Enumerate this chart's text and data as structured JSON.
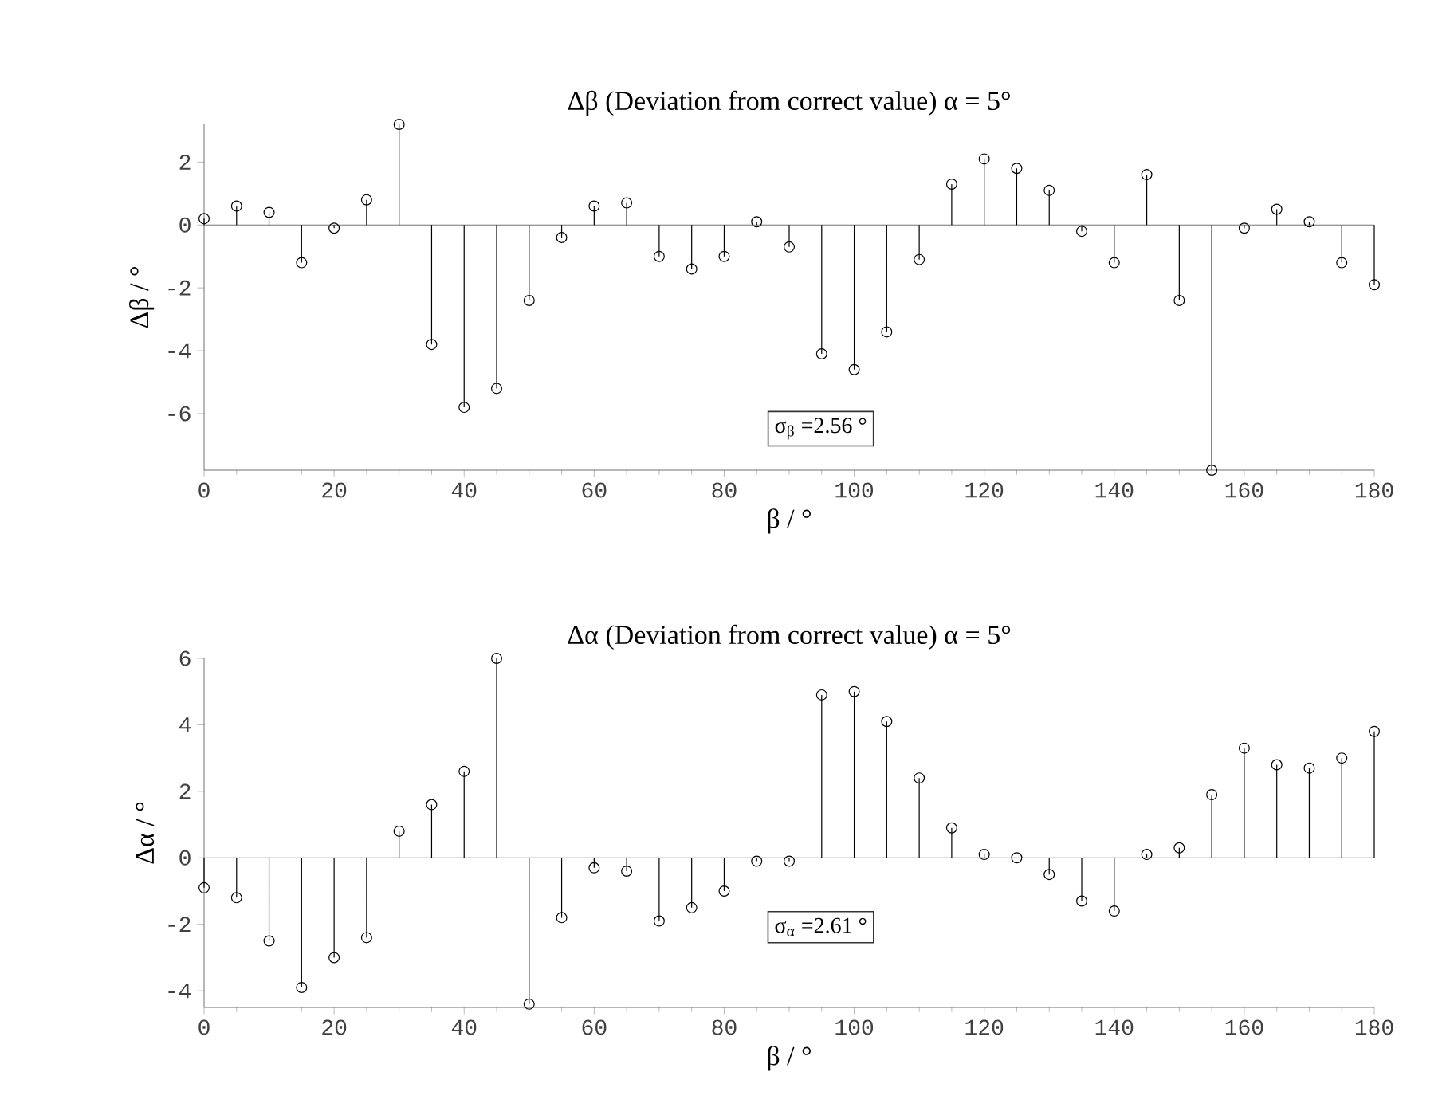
{
  "chart_data": [
    {
      "type": "lollipop",
      "title": "Δβ (Deviation from correct value) α = 5°",
      "xlabel": "β / °",
      "ylabel": "Δβ / °",
      "color": "#000000",
      "marker": "circle",
      "x": [
        0,
        5,
        10,
        15,
        20,
        25,
        30,
        35,
        40,
        45,
        50,
        55,
        60,
        65,
        70,
        75,
        80,
        85,
        90,
        95,
        100,
        105,
        110,
        115,
        120,
        125,
        130,
        135,
        140,
        145,
        150,
        155,
        160,
        165,
        170,
        175,
        180
      ],
      "values": [
        0.2,
        0.6,
        0.4,
        -1.2,
        -0.1,
        0.8,
        3.2,
        -3.8,
        -5.8,
        -5.2,
        -2.4,
        -0.4,
        0.6,
        0.7,
        -1.0,
        -1.4,
        -1.0,
        0.1,
        -0.7,
        -4.1,
        -4.6,
        -3.4,
        -1.1,
        1.3,
        2.1,
        1.8,
        1.1,
        -0.2,
        -1.2,
        1.6,
        -2.4,
        -7.8,
        -0.1,
        0.5,
        0.1,
        -1.2,
        -1.9
      ],
      "xlim": [
        0,
        180
      ],
      "xticks": [
        0,
        20,
        40,
        60,
        80,
        100,
        120,
        140,
        160,
        180
      ],
      "ylim": [
        -7.8,
        3.2
      ],
      "yticks": [
        -6,
        -4,
        -2,
        0,
        2
      ],
      "annotations": [
        "σ$_{β}$ =2.56 °"
      ]
    },
    {
      "type": "lollipop",
      "title": "Δα (Deviation from correct value) α = 5°",
      "xlabel": "β / °",
      "ylabel": "Δα / °",
      "color": "#000000",
      "marker": "circle",
      "x": [
        0,
        5,
        10,
        15,
        20,
        25,
        30,
        35,
        40,
        45,
        50,
        55,
        60,
        65,
        70,
        75,
        80,
        85,
        90,
        95,
        100,
        105,
        110,
        115,
        120,
        125,
        130,
        135,
        140,
        145,
        150,
        155,
        160,
        165,
        170,
        175,
        180
      ],
      "values": [
        -0.9,
        -1.2,
        -2.5,
        -3.9,
        -3.0,
        -2.4,
        0.8,
        1.6,
        2.6,
        6.0,
        -4.4,
        -1.8,
        -0.3,
        -0.4,
        -1.9,
        -1.5,
        -1.0,
        -0.1,
        -0.1,
        4.9,
        5.0,
        4.1,
        2.4,
        0.9,
        0.1,
        0.0,
        -0.5,
        -1.3,
        -1.6,
        0.1,
        0.3,
        1.9,
        3.3,
        2.8,
        2.7,
        3.0,
        3.8
      ],
      "xlim": [
        0,
        180
      ],
      "xticks": [
        0,
        20,
        40,
        60,
        80,
        100,
        120,
        140,
        160,
        180
      ],
      "ylim": [
        -4.5,
        6
      ],
      "yticks": [
        -4,
        -2,
        0,
        2,
        4,
        6
      ],
      "annotations": [
        "σ$_{α}$ =2.61 °"
      ]
    }
  ]
}
